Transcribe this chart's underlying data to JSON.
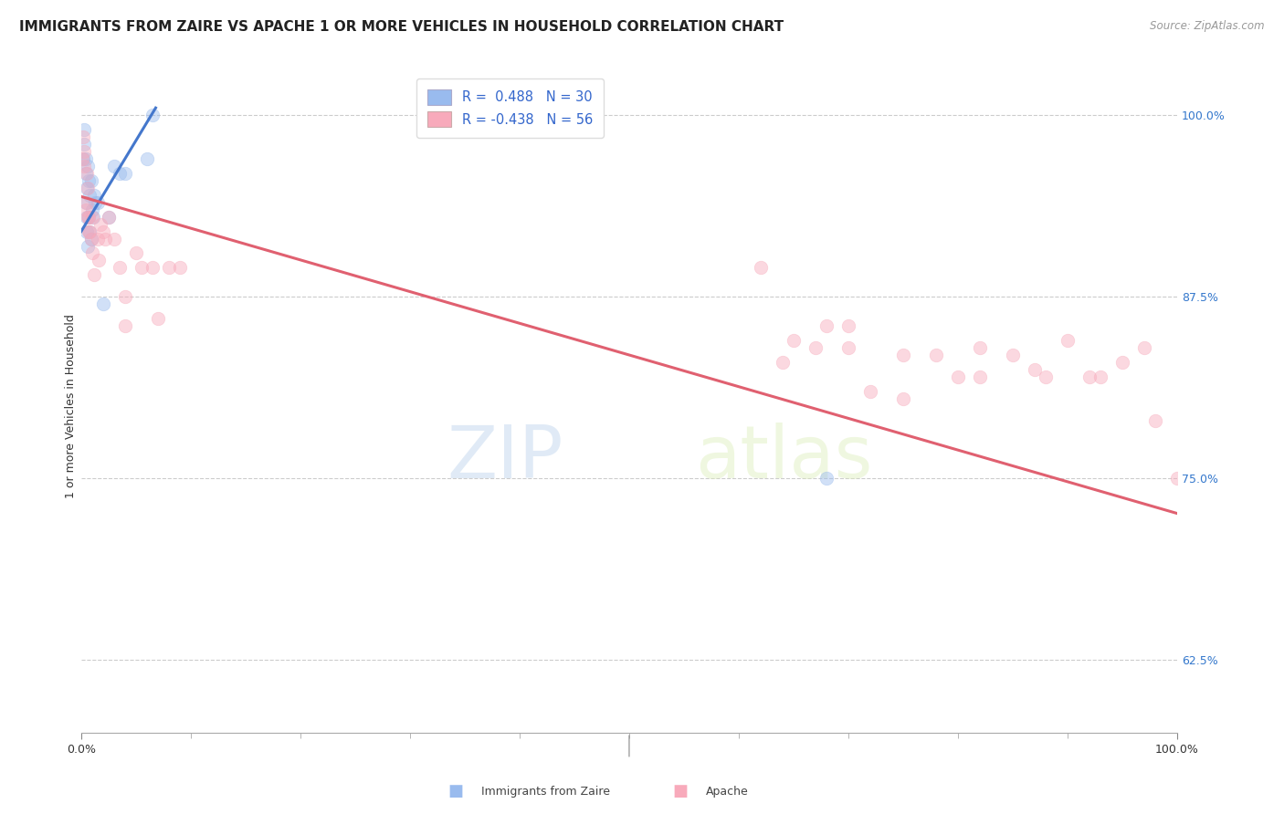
{
  "title": "IMMIGRANTS FROM ZAIRE VS APACHE 1 OR MORE VEHICLES IN HOUSEHOLD CORRELATION CHART",
  "source": "Source: ZipAtlas.com",
  "ylabel": "1 or more Vehicles in Household",
  "legend_blue_r": "R =  0.488",
  "legend_blue_n": "N = 30",
  "legend_pink_r": "R = -0.438",
  "legend_pink_n": "N = 56",
  "legend_label_blue": "Immigrants from Zaire",
  "legend_label_pink": "Apache",
  "ytick_labels": [
    "100.0%",
    "87.5%",
    "75.0%",
    "62.5%"
  ],
  "ytick_values": [
    1.0,
    0.875,
    0.75,
    0.625
  ],
  "blue_scatter_x": [
    0.002,
    0.003,
    0.003,
    0.004,
    0.004,
    0.004,
    0.005,
    0.005,
    0.005,
    0.006,
    0.006,
    0.007,
    0.007,
    0.008,
    0.008,
    0.009,
    0.009,
    0.01,
    0.011,
    0.012,
    0.013,
    0.015,
    0.02,
    0.025,
    0.03,
    0.035,
    0.04,
    0.06,
    0.065,
    0.68
  ],
  "blue_scatter_y": [
    0.97,
    0.98,
    0.99,
    0.94,
    0.96,
    0.97,
    0.92,
    0.93,
    0.95,
    0.91,
    0.965,
    0.93,
    0.955,
    0.92,
    0.945,
    0.915,
    0.955,
    0.935,
    0.93,
    0.945,
    0.94,
    0.94,
    0.87,
    0.93,
    0.965,
    0.96,
    0.96,
    0.97,
    1.0,
    0.75
  ],
  "pink_scatter_x": [
    0.001,
    0.002,
    0.003,
    0.003,
    0.004,
    0.005,
    0.005,
    0.006,
    0.006,
    0.007,
    0.007,
    0.008,
    0.009,
    0.01,
    0.01,
    0.012,
    0.015,
    0.016,
    0.018,
    0.02,
    0.022,
    0.025,
    0.03,
    0.035,
    0.04,
    0.04,
    0.05,
    0.055,
    0.065,
    0.07,
    0.08,
    0.09,
    0.62,
    0.64,
    0.65,
    0.67,
    0.68,
    0.7,
    0.7,
    0.72,
    0.75,
    0.75,
    0.78,
    0.8,
    0.82,
    0.82,
    0.85,
    0.87,
    0.88,
    0.9,
    0.92,
    0.93,
    0.95,
    0.97,
    0.98,
    1.0
  ],
  "pink_scatter_y": [
    0.97,
    0.985,
    0.965,
    0.975,
    0.935,
    0.96,
    0.94,
    0.93,
    0.95,
    0.92,
    0.93,
    0.92,
    0.915,
    0.905,
    0.93,
    0.89,
    0.915,
    0.9,
    0.925,
    0.92,
    0.915,
    0.93,
    0.915,
    0.895,
    0.875,
    0.855,
    0.905,
    0.895,
    0.895,
    0.86,
    0.895,
    0.895,
    0.895,
    0.83,
    0.845,
    0.84,
    0.855,
    0.84,
    0.855,
    0.81,
    0.805,
    0.835,
    0.835,
    0.82,
    0.84,
    0.82,
    0.835,
    0.825,
    0.82,
    0.845,
    0.82,
    0.82,
    0.83,
    0.84,
    0.79,
    0.75
  ],
  "blue_line_x": [
    0.0,
    0.068
  ],
  "blue_line_y": [
    0.92,
    1.005
  ],
  "pink_line_x": [
    0.0,
    1.0
  ],
  "pink_line_y": [
    0.944,
    0.726
  ],
  "scatter_size": 110,
  "scatter_alpha": 0.45,
  "background_color": "#ffffff",
  "grid_color": "#cccccc",
  "blue_color": "#99bbee",
  "blue_line_color": "#4477cc",
  "pink_color": "#f8aabb",
  "pink_line_color": "#e06070",
  "title_fontsize": 11,
  "axis_fontsize": 9,
  "watermark_zip": "ZIP",
  "watermark_atlas": "atlas",
  "xlim": [
    0.0,
    1.0
  ],
  "ylim": [
    0.575,
    1.025
  ]
}
